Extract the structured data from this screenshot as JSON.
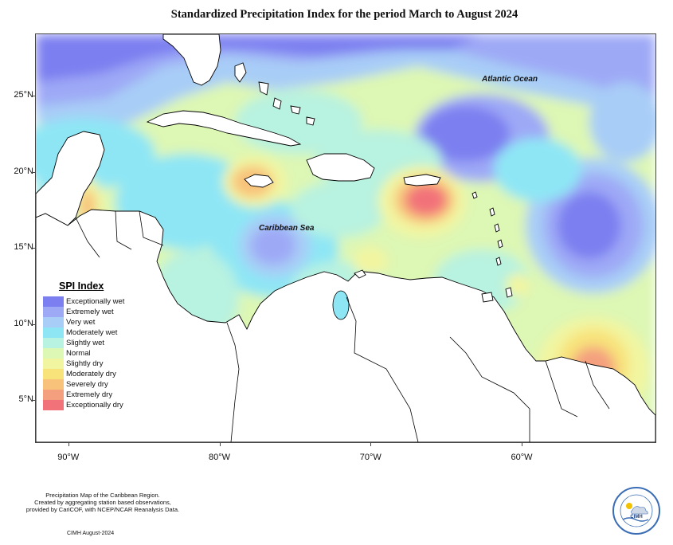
{
  "title": "Standardized Precipitation Index for the period March to August 2024",
  "axes": {
    "lat_ticks": [
      {
        "label": "25°N",
        "lat": 25
      },
      {
        "label": "20°N",
        "lat": 20
      },
      {
        "label": "15°N",
        "lat": 15
      },
      {
        "label": "10°N",
        "lat": 10
      },
      {
        "label": "5°N",
        "lat": 5
      }
    ],
    "lon_ticks": [
      {
        "label": "90°W",
        "lon": -90
      },
      {
        "label": "80°W",
        "lon": -80
      },
      {
        "label": "70°W",
        "lon": -70
      },
      {
        "label": "60°W",
        "lon": -60
      }
    ]
  },
  "map_labels": {
    "atlantic": "Atlantic Ocean",
    "caribbean": "Caribbean Sea"
  },
  "legend": {
    "title": "SPI Index",
    "items": [
      {
        "label": "Exceptionally wet",
        "color": "#7b7ff0"
      },
      {
        "label": "Extremely wet",
        "color": "#9ea9f6"
      },
      {
        "label": "Very wet",
        "color": "#a8cdf7"
      },
      {
        "label": "Moderately wet",
        "color": "#8ee6f5"
      },
      {
        "label": "Slightly wet",
        "color": "#b8f2e0"
      },
      {
        "label": "Normal",
        "color": "#ddf7b4"
      },
      {
        "label": "Slightly dry",
        "color": "#f2f5a0"
      },
      {
        "label": "Moderately dry",
        "color": "#f8e27a"
      },
      {
        "label": "Severely dry",
        "color": "#f8c27a"
      },
      {
        "label": "Extremely dry",
        "color": "#f4a07e"
      },
      {
        "label": "Exceptionally dry",
        "color": "#f2727a"
      }
    ]
  },
  "footnote": {
    "line1": "Precipitation Map of the Caribbean Region.",
    "line2": "Created by aggregating station based observations,",
    "line3": "provided by CariCOF, with NCEP/NCAR Reanalysis Data."
  },
  "credit": "CIMH August-2024",
  "logo_text": "CIMH"
}
